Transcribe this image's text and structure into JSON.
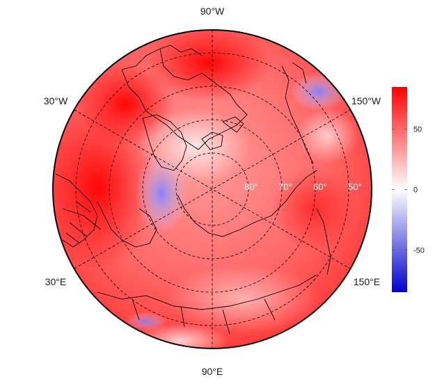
{
  "map": {
    "projection": "north-polar-stereographic",
    "graticule_style": "dashed",
    "longitude_labels": [
      "90°W",
      "30°W",
      "150°W",
      "30°E",
      "150°E",
      "90°E"
    ],
    "latitude_labels": [
      "80°",
      "70°",
      "60°",
      "50°"
    ],
    "field_description_colors": {
      "high": "#ff0000",
      "mid": "#ffffff",
      "low": "#0000cc"
    }
  },
  "colorbar": {
    "range": [
      -85,
      85
    ],
    "ticks": [
      {
        "value": 50,
        "label": "50"
      },
      {
        "value": 0,
        "label": "0"
      },
      {
        "value": -50,
        "label": "-50"
      }
    ]
  }
}
